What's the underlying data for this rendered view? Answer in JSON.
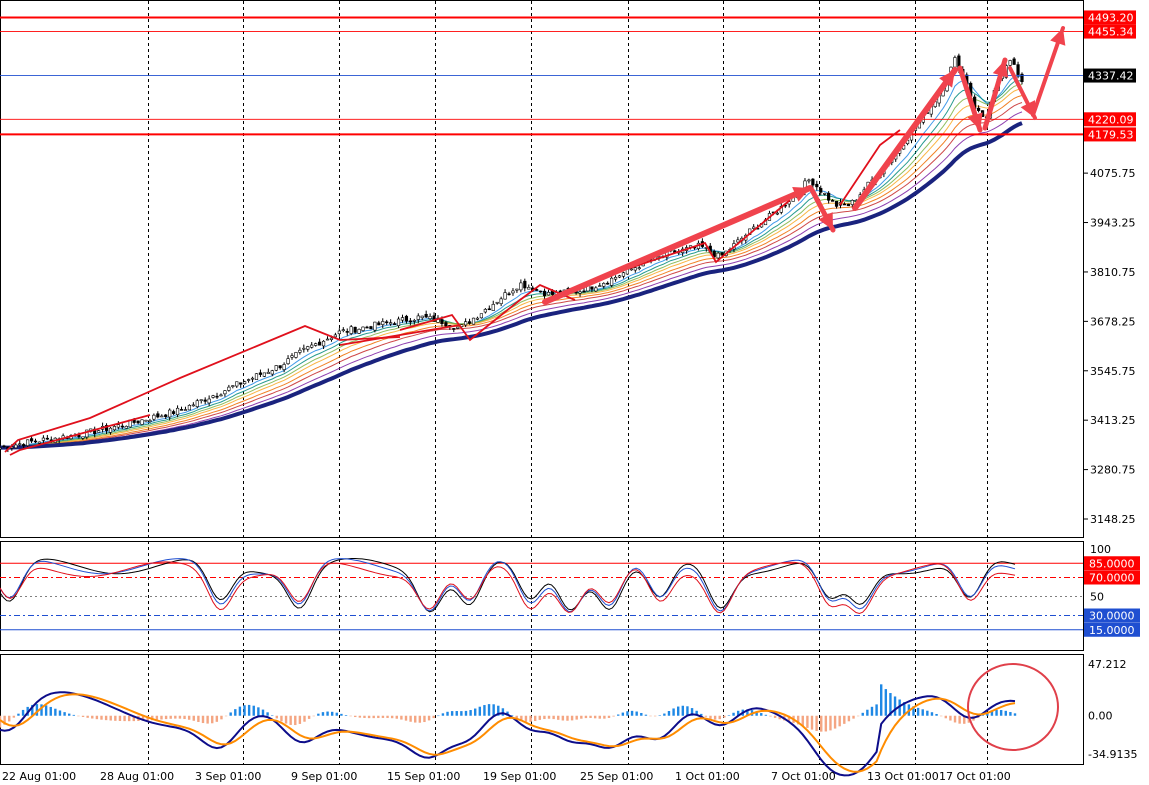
{
  "colors": {
    "background": "#ffffff",
    "grid": "#000000",
    "candle_up": "#000000",
    "candle_down": "#000000",
    "ribbon": [
      "#1a237e",
      "#7b1fa2",
      "#c62828",
      "#ef6c00",
      "#f9a825",
      "#7cb342",
      "#00897b",
      "#1e88e5"
    ],
    "level_red": "#ff0000",
    "level_blue": "#1f4fd1",
    "arrow": "#f0434d",
    "histogram_up": "#1e88e5",
    "histogram_down": "#f4a582",
    "macd_line": "#0d0d8a",
    "signal_line": "#ff8c00"
  },
  "chart_data": [
    {
      "type": "candlestick",
      "panel": "price",
      "x_labels": [
        "22 Aug 01:00",
        "28 Aug 01:00",
        "3 Sep 01:00",
        "9 Sep 01:00",
        "15 Sep 01:00",
        "19 Sep 01:00",
        "25 Sep 01:00",
        "1 Oct 01:00",
        "7 Oct 01:00",
        "13 Oct 01:00",
        "17 Oct 01:00"
      ],
      "y_ticks": [
        "4075.75",
        "3943.25",
        "3810.75",
        "3678.25",
        "3545.75",
        "3413.25",
        "3280.75",
        "3148.25"
      ],
      "ylim": [
        3100,
        4540
      ],
      "close_path": [
        [
          0,
          3340
        ],
        [
          0.03,
          3355
        ],
        [
          0.08,
          3375
        ],
        [
          0.13,
          3405
        ],
        [
          0.18,
          3440
        ],
        [
          0.23,
          3500
        ],
        [
          0.28,
          3560
        ],
        [
          0.31,
          3610
        ],
        [
          0.34,
          3650
        ],
        [
          0.38,
          3670
        ],
        [
          0.42,
          3690
        ],
        [
          0.44,
          3680
        ],
        [
          0.46,
          3660
        ],
        [
          0.49,
          3720
        ],
        [
          0.52,
          3780
        ],
        [
          0.55,
          3750
        ],
        [
          0.58,
          3760
        ],
        [
          0.61,
          3790
        ],
        [
          0.64,
          3830
        ],
        [
          0.67,
          3860
        ],
        [
          0.7,
          3880
        ],
        [
          0.72,
          3850
        ],
        [
          0.75,
          3920
        ],
        [
          0.78,
          3980
        ],
        [
          0.81,
          4060
        ],
        [
          0.835,
          3990
        ],
        [
          0.85,
          3990
        ],
        [
          0.88,
          4080
        ],
        [
          0.91,
          4180
        ],
        [
          0.94,
          4290
        ],
        [
          0.955,
          4380
        ],
        [
          0.965,
          4330
        ],
        [
          0.975,
          4250
        ],
        [
          0.985,
          4220
        ],
        [
          0.99,
          4260
        ],
        [
          1.0,
          4330
        ],
        [
          1.012,
          4380
        ],
        [
          1.025,
          4310
        ]
      ],
      "levels": [
        {
          "value": "4493.20",
          "price": 4493.2,
          "color": "#ff0000",
          "style": "solid-thick"
        },
        {
          "value": "4455.34",
          "price": 4455.34,
          "color": "#ff0000",
          "style": "solid-thin"
        },
        {
          "value": "4337.42",
          "price": 4337.42,
          "color": "#1f4fd1",
          "style": "solid-thin",
          "label_bg": "#000000"
        },
        {
          "value": "4220.09",
          "price": 4220.09,
          "color": "#ff0000",
          "style": "solid-thin"
        },
        {
          "value": "4179.53",
          "price": 4179.53,
          "color": "#ff0000",
          "style": "solid-thick"
        }
      ]
    },
    {
      "type": "line",
      "panel": "oscillator",
      "ylim": [
        0,
        100
      ],
      "y_ticks": [
        "100",
        "50"
      ],
      "levels": [
        {
          "value": "85.0000",
          "level": 85,
          "color": "#ff0000",
          "style": "solid"
        },
        {
          "value": "70.0000",
          "level": 70,
          "color": "#ff0000",
          "style": "dashdot"
        },
        {
          "value": "30.0000",
          "level": 30,
          "color": "#1f4fd1",
          "style": "dashdot"
        },
        {
          "value": "15.0000",
          "level": 15,
          "color": "#1f4fd1",
          "style": "solid"
        }
      ]
    },
    {
      "type": "bar",
      "panel": "macd",
      "ylim": [
        -34.9135,
        47.212
      ],
      "y_ticks": [
        "47.212",
        "0.00",
        "-34.9135"
      ]
    }
  ]
}
